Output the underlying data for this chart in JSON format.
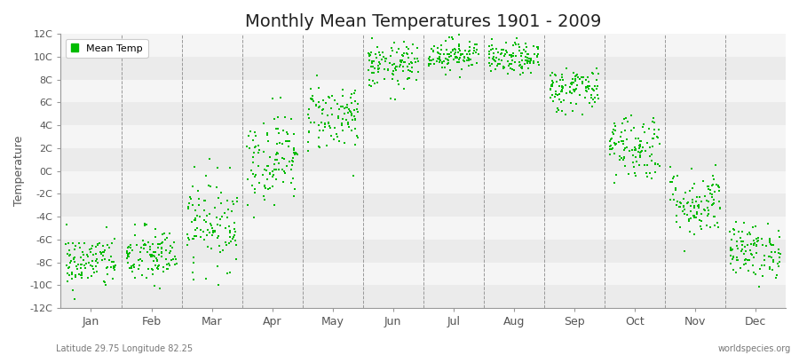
{
  "title": "Monthly Mean Temperatures 1901 - 2009",
  "ylabel": "Temperature",
  "subtitle": "Latitude 29.75 Longitude 82.25",
  "watermark": "worldspecies.org",
  "ylim": [
    -12,
    12
  ],
  "yticks": [
    -12,
    -10,
    -8,
    -6,
    -4,
    -2,
    0,
    2,
    4,
    6,
    8,
    10,
    12
  ],
  "ytick_labels": [
    "-12C",
    "-10C",
    "-8C",
    "-6C",
    "-4C",
    "-2C",
    "0C",
    "2C",
    "4C",
    "6C",
    "8C",
    "10C",
    "12C"
  ],
  "months": [
    "Jan",
    "Feb",
    "Mar",
    "Apr",
    "May",
    "Jun",
    "Jul",
    "Aug",
    "Sep",
    "Oct",
    "Nov",
    "Dec"
  ],
  "dot_color": "#00bb00",
  "dot_size": 3,
  "background_color": "#ffffff",
  "band_colors": [
    "#ebebeb",
    "#f5f5f5"
  ],
  "title_fontsize": 14,
  "n_years": 109,
  "mean_temps": [
    -8.0,
    -7.5,
    -4.5,
    1.2,
    4.8,
    9.2,
    10.2,
    9.8,
    7.2,
    2.2,
    -2.8,
    -7.0
  ],
  "std_temps": [
    1.2,
    1.3,
    2.0,
    2.0,
    1.5,
    1.0,
    0.7,
    0.7,
    1.0,
    1.5,
    1.5,
    1.2
  ],
  "random_seed": 42
}
